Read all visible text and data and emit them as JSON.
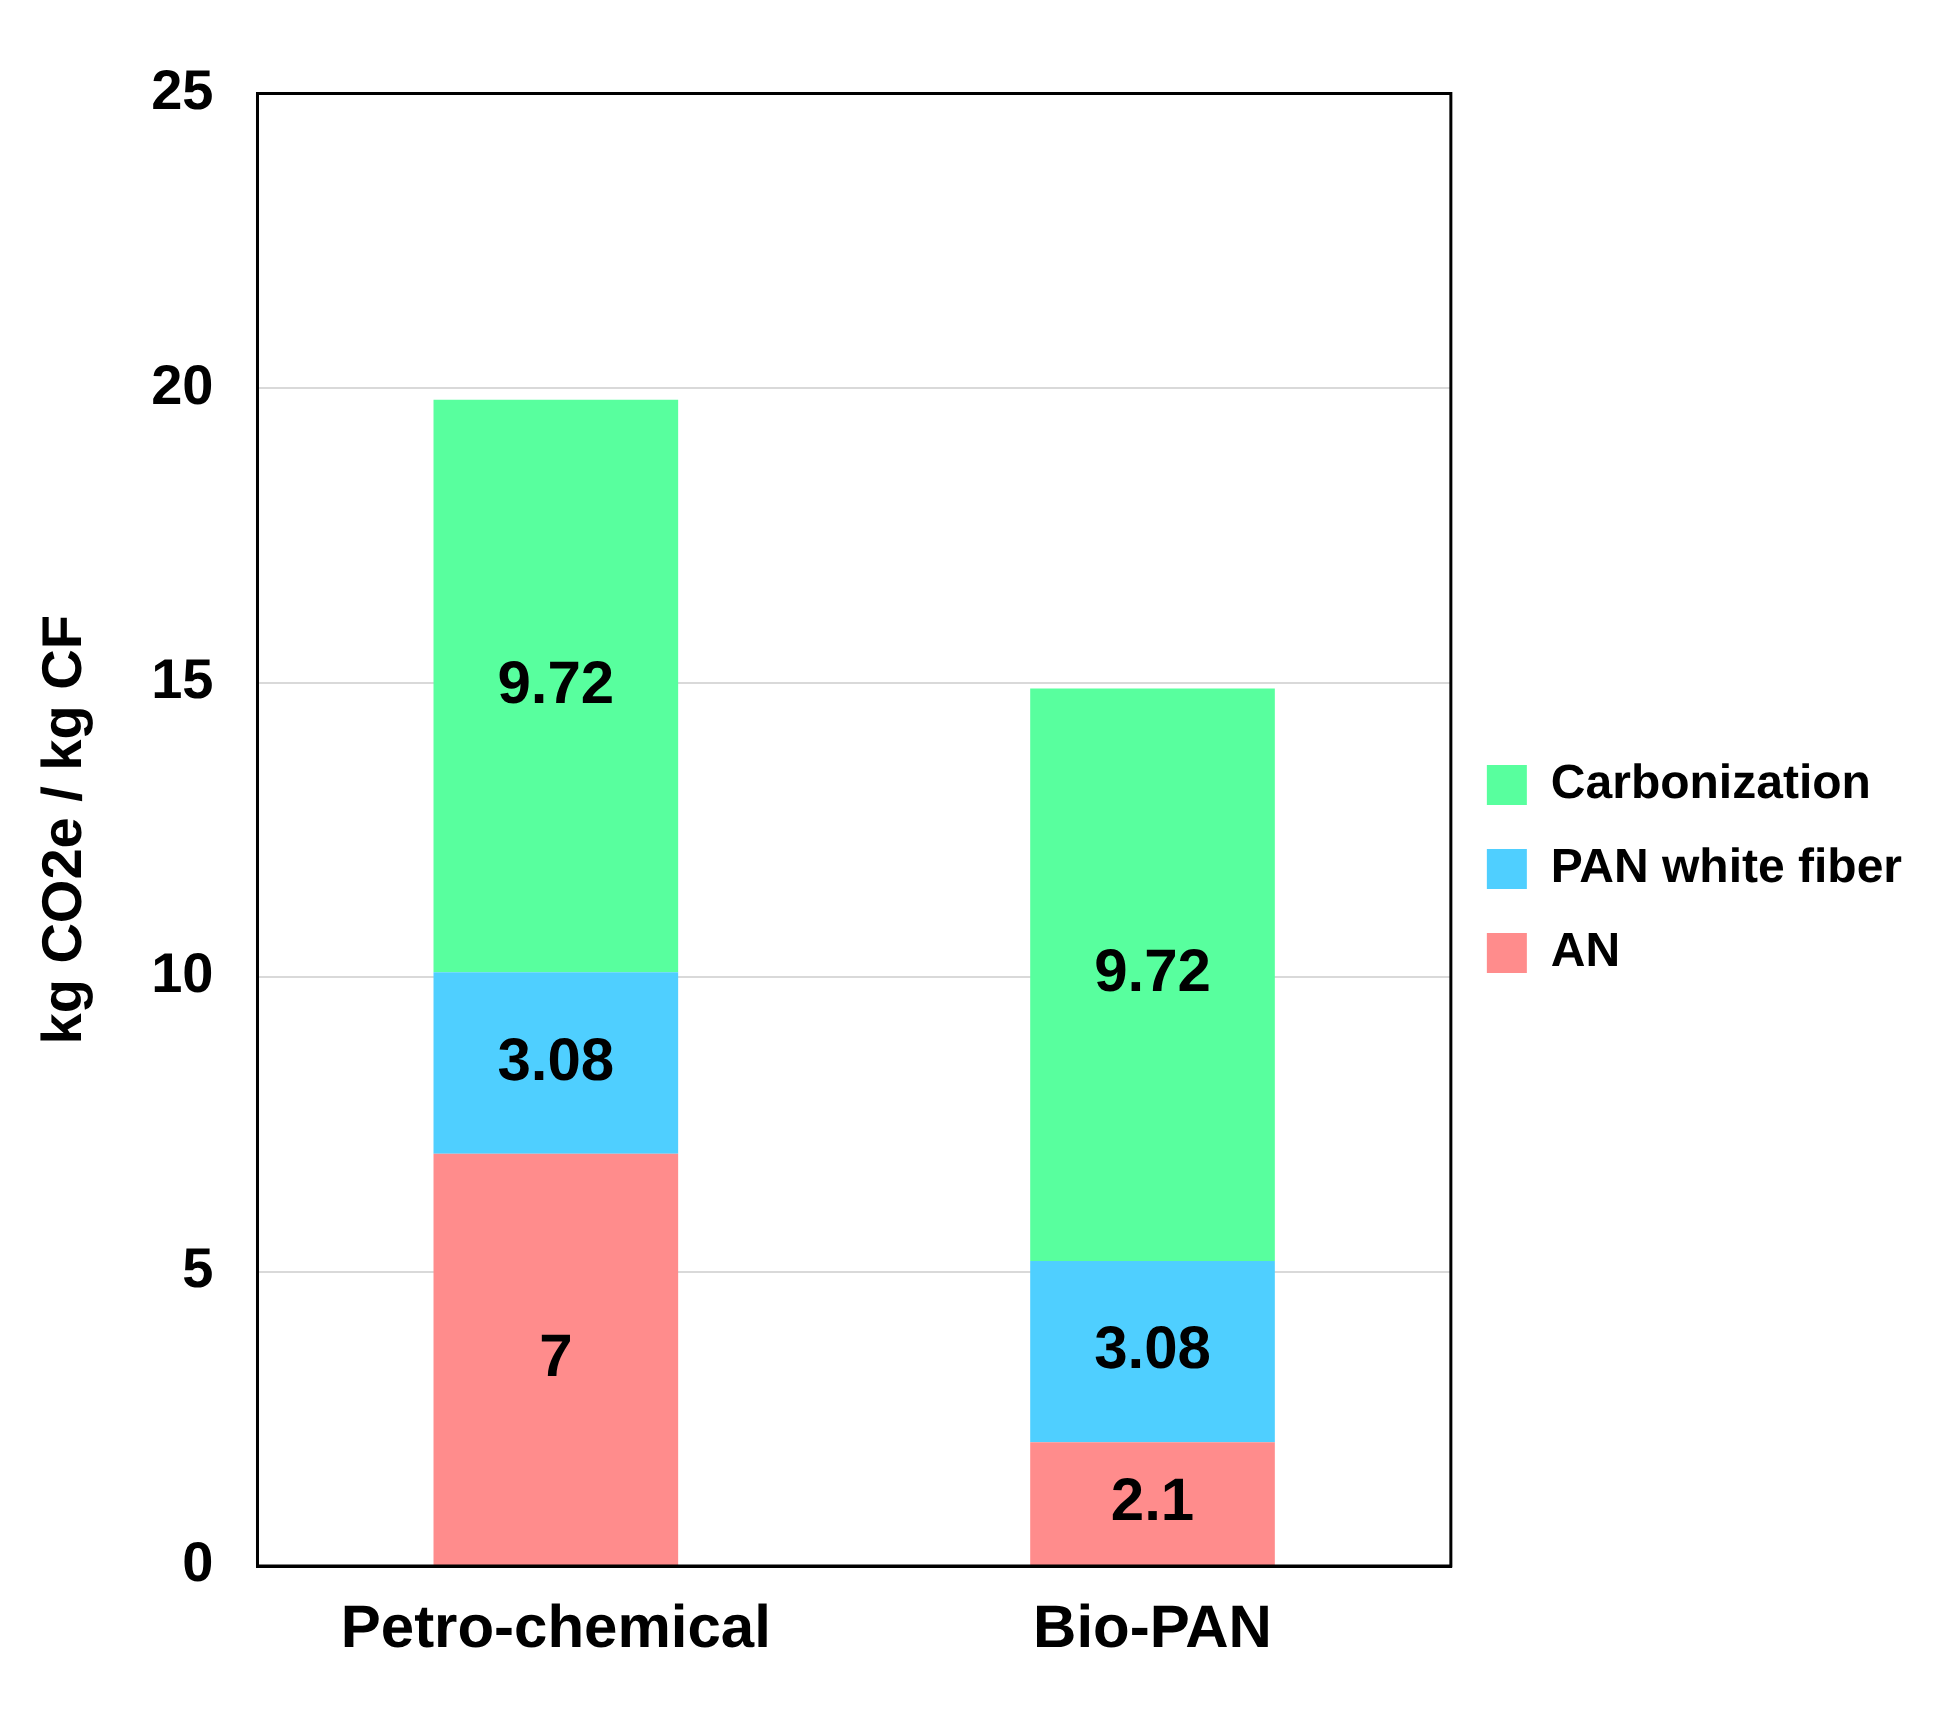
{
  "chart_data": {
    "type": "bar",
    "stacked": true,
    "ylabel": "kg CO2e / kg CF",
    "categories": [
      "Petro-chemical",
      "Bio-PAN"
    ],
    "series": [
      {
        "name": "AN",
        "color": "#ff8c8c",
        "values": [
          7,
          2.1
        ]
      },
      {
        "name": "PAN white fiber",
        "color": "#4fcfff",
        "values": [
          3.08,
          3.08
        ]
      },
      {
        "name": "Carbonization",
        "color": "#58ff9e",
        "values": [
          9.72,
          9.72
        ]
      }
    ],
    "ylim": [
      0,
      25
    ],
    "yticks": [
      0,
      5,
      10,
      15,
      20,
      25
    ],
    "grid": "y",
    "legend": "right",
    "data_labels": true
  }
}
